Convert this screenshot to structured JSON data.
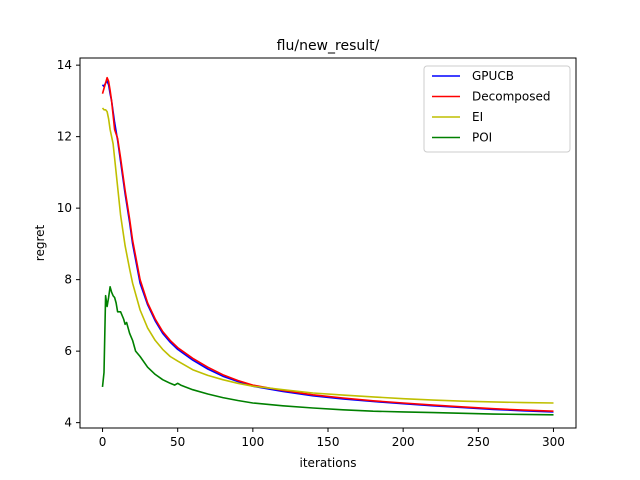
{
  "chart_data": {
    "type": "line",
    "title": "flu/new_result/",
    "xlabel": "iterations",
    "ylabel": "regret",
    "xlim": [
      -15,
      315
    ],
    "ylim": [
      3.85,
      14.2
    ],
    "xticks": [
      0,
      50,
      100,
      150,
      200,
      250,
      300
    ],
    "yticks": [
      4,
      6,
      8,
      10,
      12,
      14
    ],
    "grid": false,
    "legend_position": "top-right",
    "series": [
      {
        "name": "GPUCB",
        "color": "#0000ff",
        "x": [
          0,
          1,
          2,
          3,
          4,
          5,
          6,
          8,
          10,
          12,
          15,
          18,
          20,
          25,
          30,
          35,
          40,
          45,
          50,
          60,
          70,
          80,
          90,
          100,
          120,
          140,
          160,
          180,
          200,
          220,
          240,
          260,
          280,
          300
        ],
        "y": [
          13.45,
          13.4,
          13.5,
          13.55,
          13.45,
          13.2,
          13.0,
          12.4,
          11.9,
          11.3,
          10.4,
          9.6,
          9.0,
          7.9,
          7.3,
          6.85,
          6.5,
          6.25,
          6.05,
          5.75,
          5.5,
          5.3,
          5.15,
          5.02,
          4.87,
          4.75,
          4.66,
          4.59,
          4.53,
          4.47,
          4.42,
          4.37,
          4.33,
          4.3
        ]
      },
      {
        "name": "Decomposed",
        "color": "#ff0000",
        "x": [
          0,
          1,
          2,
          3,
          4,
          5,
          6,
          7,
          8,
          10,
          12,
          15,
          18,
          20,
          25,
          30,
          35,
          40,
          45,
          50,
          60,
          70,
          80,
          90,
          100,
          120,
          140,
          160,
          180,
          200,
          220,
          240,
          260,
          280,
          300
        ],
        "y": [
          13.2,
          13.35,
          13.5,
          13.65,
          13.55,
          13.3,
          13.0,
          12.6,
          12.2,
          11.95,
          11.4,
          10.5,
          9.7,
          9.1,
          8.0,
          7.35,
          6.9,
          6.55,
          6.3,
          6.1,
          5.8,
          5.55,
          5.34,
          5.18,
          5.05,
          4.9,
          4.78,
          4.69,
          4.61,
          4.55,
          4.49,
          4.44,
          4.39,
          4.35,
          4.32
        ]
      },
      {
        "name": "EI",
        "color": "#bfbf00",
        "x": [
          0,
          1,
          2,
          3,
          4,
          5,
          6,
          7,
          8,
          10,
          12,
          15,
          18,
          20,
          25,
          30,
          35,
          40,
          45,
          50,
          60,
          70,
          80,
          90,
          100,
          120,
          140,
          160,
          180,
          200,
          220,
          240,
          260,
          280,
          300
        ],
        "y": [
          12.8,
          12.75,
          12.75,
          12.7,
          12.5,
          12.2,
          12.0,
          11.8,
          11.4,
          10.6,
          9.8,
          8.95,
          8.3,
          7.9,
          7.15,
          6.65,
          6.3,
          6.05,
          5.85,
          5.72,
          5.48,
          5.32,
          5.2,
          5.1,
          5.02,
          4.92,
          4.83,
          4.77,
          4.72,
          4.67,
          4.63,
          4.6,
          4.58,
          4.56,
          4.55
        ]
      },
      {
        "name": "POI",
        "color": "#008000",
        "x": [
          0,
          1,
          2,
          3,
          4,
          5,
          6,
          7,
          8,
          9,
          10,
          12,
          14,
          15,
          16,
          18,
          20,
          22,
          25,
          30,
          35,
          40,
          45,
          48,
          50,
          52,
          55,
          60,
          70,
          80,
          90,
          100,
          120,
          140,
          160,
          180,
          200,
          220,
          240,
          260,
          280,
          300
        ],
        "y": [
          5.0,
          5.4,
          7.55,
          7.25,
          7.5,
          7.8,
          7.65,
          7.55,
          7.5,
          7.35,
          7.1,
          7.1,
          6.9,
          6.75,
          6.8,
          6.5,
          6.3,
          6.0,
          5.85,
          5.55,
          5.35,
          5.2,
          5.1,
          5.05,
          5.1,
          5.05,
          5.0,
          4.92,
          4.8,
          4.7,
          4.62,
          4.55,
          4.47,
          4.41,
          4.36,
          4.32,
          4.3,
          4.28,
          4.26,
          4.24,
          4.23,
          4.22
        ]
      }
    ]
  }
}
